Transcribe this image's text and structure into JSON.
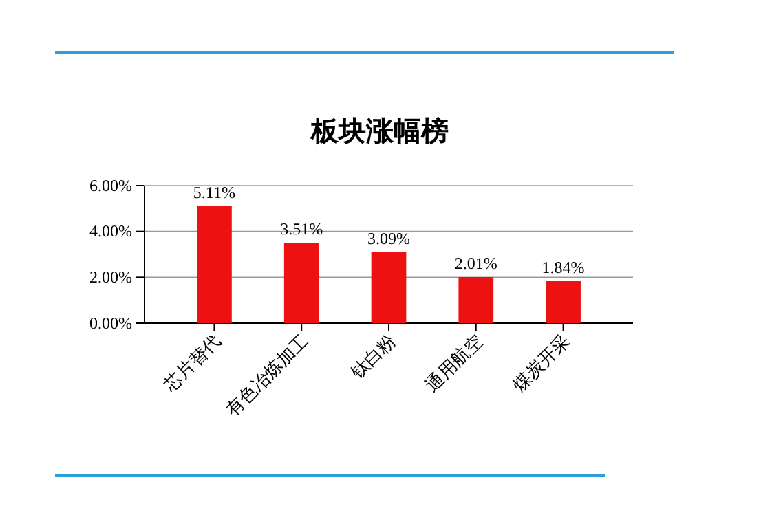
{
  "chart_data": {
    "type": "bar",
    "title": "板块涨幅榜",
    "categories": [
      "芯片替代",
      "有色冶炼加工",
      "钛白粉",
      "通用航空",
      "煤炭开采"
    ],
    "values": [
      5.11,
      3.51,
      3.09,
      2.01,
      1.84
    ],
    "value_labels": [
      "5.11%",
      "3.51%",
      "3.09%",
      "2.01%",
      "1.84%"
    ],
    "color": "#ee1111",
    "ylim": [
      0,
      6
    ],
    "yticks": [
      {
        "value": 0,
        "label": "0.00%"
      },
      {
        "value": 2,
        "label": "2.00%"
      },
      {
        "value": 4,
        "label": "4.00%"
      },
      {
        "value": 6,
        "label": "6.00%"
      }
    ],
    "grid": "y"
  }
}
